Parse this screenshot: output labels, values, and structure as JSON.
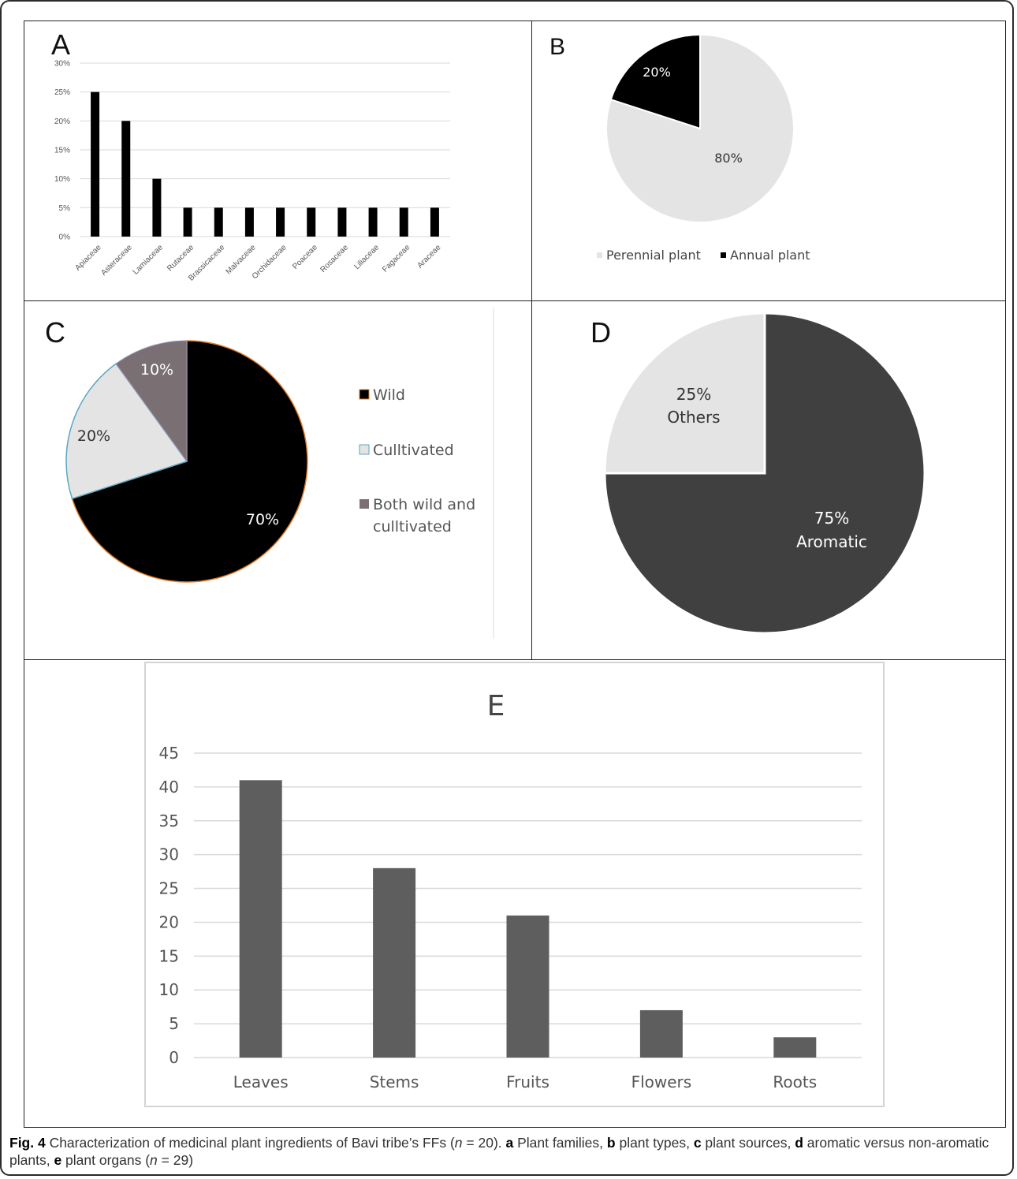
{
  "colors": {
    "black": "#000000",
    "light_gray": "#e4e4e4",
    "dark_gray": "#404040",
    "bar_gray": "#5e5e5e",
    "mauve": "#7a6f72",
    "orange_border": "#e07b28",
    "teal_border": "#5aa7c4"
  },
  "chart_data": [
    {
      "panel": "A",
      "type": "bar",
      "title": "A",
      "categories": [
        "Apiaceae",
        "Asteraceae",
        "Lamiaceae",
        "Rutaceae",
        "Brassicaceae",
        "Malvaceae",
        "Orchidaceae",
        "Poaceae",
        "Rosaceae",
        "Liliaceae",
        "Fagaceae",
        "Araceae"
      ],
      "values": [
        25,
        20,
        10,
        5,
        5,
        5,
        5,
        5,
        5,
        5,
        5,
        5
      ],
      "yticks": [
        "0%",
        "5%",
        "10%",
        "15%",
        "20%",
        "25%",
        "30%"
      ],
      "ylim": [
        0,
        30
      ],
      "grid": true,
      "xlabel": "",
      "ylabel": ""
    },
    {
      "panel": "B",
      "type": "pie",
      "title": "B",
      "slices": [
        {
          "label": "Annual plant",
          "value": 20,
          "text": "20%",
          "color": "#000000"
        },
        {
          "label": "Perennial plant",
          "value": 80,
          "text": "80%",
          "color": "#e4e4e4"
        }
      ],
      "legend": [
        "Perennial plant",
        "Annual plant"
      ],
      "legend_position": "bottom"
    },
    {
      "panel": "C",
      "type": "pie",
      "title": "C",
      "slices": [
        {
          "label": "Wild",
          "value": 70,
          "text": "70%",
          "color": "#000000"
        },
        {
          "label": "Culltivated",
          "value": 20,
          "text": "20%",
          "color": "#e4e4e4"
        },
        {
          "label": "Both wild and culltivated",
          "value": 10,
          "text": "10%",
          "color": "#7a6f72"
        }
      ],
      "legend": [
        "Wild",
        "Culltivated",
        "Both wild and",
        "culltivated"
      ],
      "legend_position": "right"
    },
    {
      "panel": "D",
      "type": "pie",
      "title": "D",
      "slices": [
        {
          "label": "Aromatic",
          "value": 75,
          "text": "75%",
          "color": "#404040"
        },
        {
          "label": "Others",
          "value": 25,
          "text": "25%",
          "color": "#e4e4e4"
        }
      ],
      "legend_position": "none"
    },
    {
      "panel": "E",
      "type": "bar",
      "title": "E",
      "categories": [
        "Leaves",
        "Stems",
        "Fruits",
        "Flowers",
        "Roots"
      ],
      "values": [
        41,
        28,
        21,
        7,
        3
      ],
      "yticks": [
        "0",
        "5",
        "10",
        "15",
        "20",
        "25",
        "30",
        "35",
        "40",
        "45"
      ],
      "ylim": [
        0,
        45
      ],
      "grid": true,
      "xlabel": "",
      "ylabel": ""
    }
  ],
  "caption": {
    "fig_label": "Fig. 4",
    "intro": " Characterization of medicinal plant ingredients of Bavi tribe’s FFs (",
    "n_italic": "n",
    "n1_value": " = 20). ",
    "a_label": "a",
    "a_text": " Plant families, ",
    "b_label": "b",
    "b_text": " plant types, ",
    "c_label": "c",
    "c_text": " plant sources, ",
    "d_label": "d",
    "d_text": " aromatic versus non-aromatic plants, ",
    "e_label": "e",
    "e_text": " plant organs (",
    "n2_value": " = 29)"
  }
}
